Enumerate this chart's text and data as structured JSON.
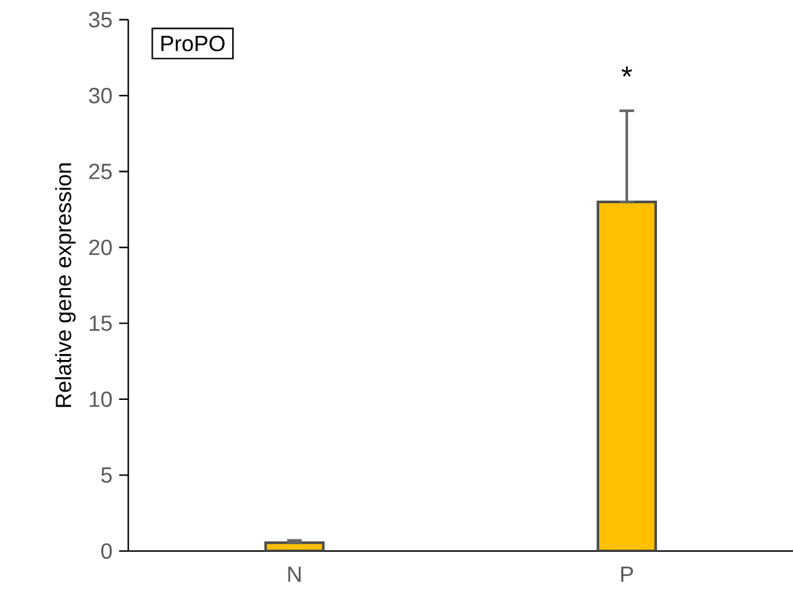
{
  "chart_data": {
    "type": "bar",
    "ylabel": "Relative gene expression",
    "categories": [
      "N",
      "P"
    ],
    "values": [
      0.55,
      23
    ],
    "errors": [
      [
        0.55,
        0.7
      ],
      [
        23,
        29
      ]
    ],
    "color": "#ffc000",
    "ylim": [
      0,
      35
    ],
    "yticks": [
      0,
      5,
      10,
      15,
      20,
      25,
      30,
      35
    ],
    "grid": false,
    "annotations": [
      "ProPO",
      "*"
    ]
  }
}
